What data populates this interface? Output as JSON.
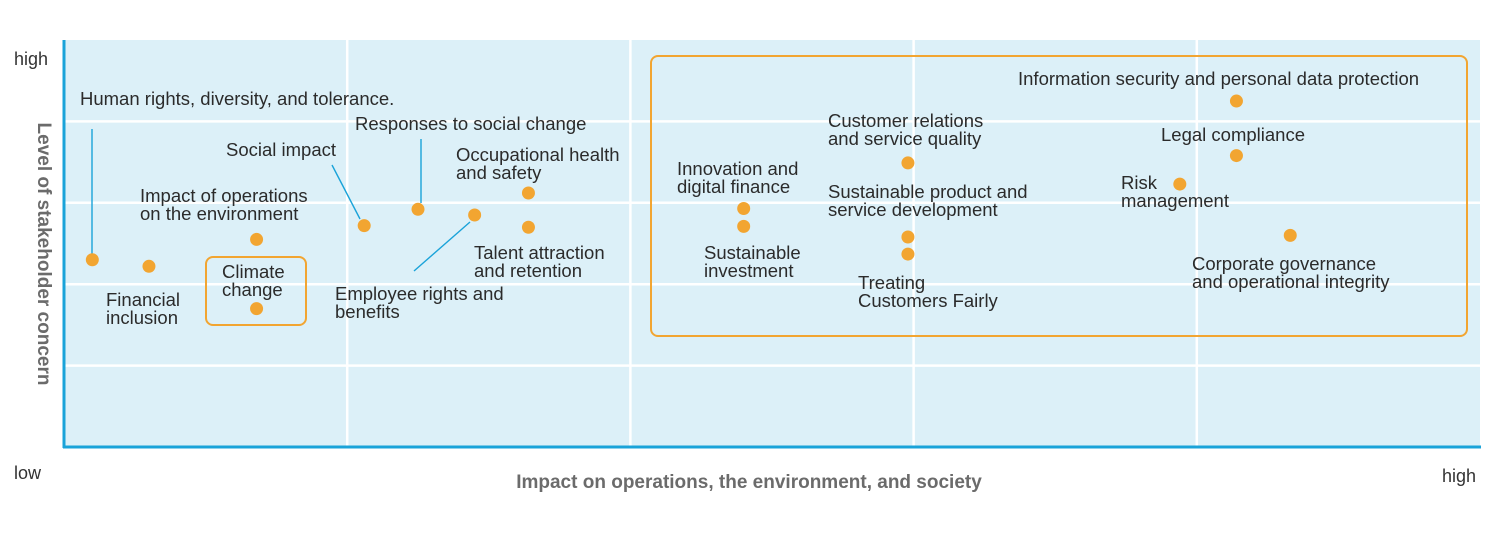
{
  "chart_data": {
    "type": "scatter",
    "title": "",
    "xlabel": "Impact on operations, the environment, and society",
    "ylabel": "Level of stakeholder concern",
    "x_tick_low": "low",
    "x_tick_high": "high",
    "y_tick_high": "high",
    "xlim": [
      0,
      5
    ],
    "ylim": [
      0,
      5
    ],
    "grid": true,
    "colors": {
      "plot_bg": "#dcf0f8",
      "axis": "#1aa3d9",
      "grid": "#ffffff",
      "marker": "#f2a531",
      "highlight_box": "#f2a531",
      "leader": "#1aa3d9"
    },
    "points": [
      {
        "label": [
          "Human rights, diversity, and tolerance."
        ],
        "x": 0.1,
        "y": 2.3
      },
      {
        "label": [
          "Financial",
          "inclusion"
        ],
        "x": 0.3,
        "y": 2.22
      },
      {
        "label": [
          "Impact of operations",
          "on the environment"
        ],
        "x": 0.68,
        "y": 2.55
      },
      {
        "label": [
          "Climate",
          "change"
        ],
        "x": 0.68,
        "y": 1.7
      },
      {
        "label": [
          "Social impact"
        ],
        "x": 1.06,
        "y": 2.72
      },
      {
        "label": [
          "Responses to social change"
        ],
        "x": 1.25,
        "y": 2.92
      },
      {
        "label": [
          "Employee rights and",
          "benefits"
        ],
        "x": 1.45,
        "y": 2.85
      },
      {
        "label": [
          "Occupational health",
          "and safety"
        ],
        "x": 1.64,
        "y": 3.12
      },
      {
        "label": [
          "Talent attraction",
          "and retention"
        ],
        "x": 1.64,
        "y": 2.7
      },
      {
        "label": [
          "Innovation and",
          "digital finance"
        ],
        "x": 2.4,
        "y": 2.93
      },
      {
        "label": [
          "Sustainable",
          "investment"
        ],
        "x": 2.4,
        "y": 2.71
      },
      {
        "label": [
          "Customer relations",
          "and service quality"
        ],
        "x": 2.98,
        "y": 3.49
      },
      {
        "label": [
          "Sustainable product and",
          "service development"
        ],
        "x": 2.98,
        "y": 2.58
      },
      {
        "label": [
          "Treating",
          "Customers Fairly"
        ],
        "x": 2.98,
        "y": 2.37
      },
      {
        "label": [
          "Information security and personal data protection"
        ],
        "x": 4.14,
        "y": 4.25
      },
      {
        "label": [
          "Legal compliance"
        ],
        "x": 4.14,
        "y": 3.58
      },
      {
        "label": [
          "Risk",
          "management"
        ],
        "x": 3.94,
        "y": 3.23
      },
      {
        "label": [
          "Corporate governance",
          "and operational integrity"
        ],
        "x": 4.33,
        "y": 2.6
      }
    ],
    "highlight_boxes": [
      {
        "encloses": [
          "Climate",
          "change"
        ]
      },
      {
        "encloses": [
          "Innovation and digital finance",
          "Sustainable investment",
          "Customer relations and service quality",
          "Sustainable product and service development",
          "Treating Customers Fairly",
          "Information security and personal data protection",
          "Legal compliance",
          "Risk management",
          "Corporate governance and operational integrity"
        ]
      }
    ]
  }
}
